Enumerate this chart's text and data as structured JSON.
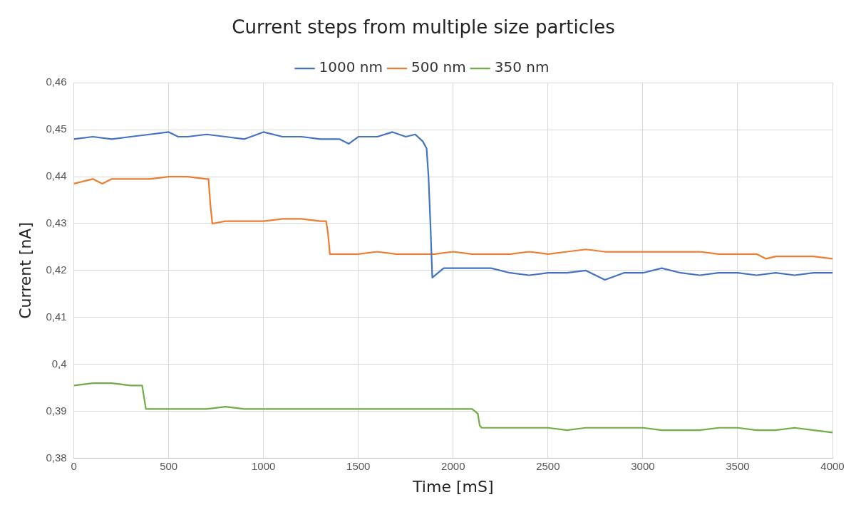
{
  "chart_data": {
    "type": "line",
    "title": "Current steps from multiple size particles",
    "xlabel": "Time [mS]",
    "ylabel": "Current [nA]",
    "xlim": [
      0,
      4000
    ],
    "xticks": [
      0,
      500,
      1000,
      1500,
      2000,
      2500,
      3000,
      3500,
      4000
    ],
    "ylim": [
      0.38,
      0.46
    ],
    "yticks": [
      {
        "value": 0.38,
        "label": "0,38"
      },
      {
        "value": 0.39,
        "label": "0,39"
      },
      {
        "value": 0.4,
        "label": "0,4"
      },
      {
        "value": 0.41,
        "label": "0,41"
      },
      {
        "value": 0.42,
        "label": "0,42"
      },
      {
        "value": 0.43,
        "label": "0,43"
      },
      {
        "value": 0.44,
        "label": "0,44"
      },
      {
        "value": 0.45,
        "label": "0,45"
      },
      {
        "value": 0.46,
        "label": "0,46"
      }
    ],
    "grid": true,
    "legend": "top",
    "marker": "none",
    "line_style": "solid",
    "series": [
      {
        "name": "1000 nm",
        "color": "#4472c4",
        "x": [
          0,
          100,
          200,
          300,
          400,
          500,
          550,
          600,
          700,
          800,
          900,
          1000,
          1100,
          1200,
          1300,
          1400,
          1450,
          1500,
          1600,
          1680,
          1750,
          1800,
          1840,
          1860,
          1870,
          1880,
          1890,
          1950,
          2000,
          2100,
          2200,
          2300,
          2400,
          2500,
          2600,
          2700,
          2800,
          2900,
          3000,
          3100,
          3200,
          3300,
          3400,
          3500,
          3600,
          3700,
          3800,
          3900,
          4000
        ],
        "values": [
          0.448,
          0.4485,
          0.448,
          0.4485,
          0.449,
          0.4495,
          0.4485,
          0.4485,
          0.449,
          0.4485,
          0.448,
          0.4495,
          0.4485,
          0.4485,
          0.448,
          0.448,
          0.447,
          0.4485,
          0.4485,
          0.4495,
          0.4485,
          0.449,
          0.4475,
          0.446,
          0.44,
          0.43,
          0.4185,
          0.4205,
          0.4205,
          0.4205,
          0.4205,
          0.4195,
          0.419,
          0.4195,
          0.4195,
          0.42,
          0.418,
          0.4195,
          0.4195,
          0.4205,
          0.4195,
          0.419,
          0.4195,
          0.4195,
          0.419,
          0.4195,
          0.419,
          0.4195,
          0.4195
        ]
      },
      {
        "name": "500 nm",
        "color": "#ed7d31",
        "x": [
          0,
          100,
          150,
          200,
          300,
          400,
          500,
          600,
          700,
          710,
          720,
          730,
          800,
          900,
          1000,
          1100,
          1200,
          1300,
          1330,
          1340,
          1350,
          1400,
          1500,
          1600,
          1700,
          1800,
          1900,
          2000,
          2100,
          2200,
          2300,
          2400,
          2500,
          2600,
          2700,
          2800,
          2900,
          3000,
          3100,
          3200,
          3300,
          3400,
          3500,
          3600,
          3650,
          3700,
          3800,
          3900,
          4000
        ],
        "values": [
          0.4385,
          0.4395,
          0.4385,
          0.4395,
          0.4395,
          0.4395,
          0.44,
          0.44,
          0.4395,
          0.4395,
          0.434,
          0.43,
          0.4305,
          0.4305,
          0.4305,
          0.431,
          0.431,
          0.4305,
          0.4305,
          0.428,
          0.4235,
          0.4235,
          0.4235,
          0.424,
          0.4235,
          0.4235,
          0.4235,
          0.424,
          0.4235,
          0.4235,
          0.4235,
          0.424,
          0.4235,
          0.424,
          0.4245,
          0.424,
          0.424,
          0.424,
          0.424,
          0.424,
          0.424,
          0.4235,
          0.4235,
          0.4235,
          0.4225,
          0.423,
          0.423,
          0.423,
          0.4225
        ]
      },
      {
        "name": "350 nm",
        "color": "#70ad47",
        "x": [
          0,
          100,
          200,
          300,
          360,
          370,
          380,
          400,
          500,
          600,
          700,
          800,
          900,
          1000,
          1100,
          1200,
          1300,
          1400,
          1500,
          1600,
          1700,
          1800,
          1900,
          2000,
          2100,
          2130,
          2140,
          2150,
          2200,
          2300,
          2400,
          2500,
          2600,
          2700,
          2800,
          2900,
          3000,
          3100,
          3200,
          3300,
          3400,
          3500,
          3600,
          3700,
          3800,
          3900,
          4000
        ],
        "values": [
          0.3955,
          0.396,
          0.396,
          0.3955,
          0.3955,
          0.393,
          0.3905,
          0.3905,
          0.3905,
          0.3905,
          0.3905,
          0.391,
          0.3905,
          0.3905,
          0.3905,
          0.3905,
          0.3905,
          0.3905,
          0.3905,
          0.3905,
          0.3905,
          0.3905,
          0.3905,
          0.3905,
          0.3905,
          0.3895,
          0.387,
          0.3865,
          0.3865,
          0.3865,
          0.3865,
          0.3865,
          0.386,
          0.3865,
          0.3865,
          0.3865,
          0.3865,
          0.386,
          0.386,
          0.386,
          0.3865,
          0.3865,
          0.386,
          0.386,
          0.3865,
          0.386,
          0.3855
        ]
      }
    ]
  }
}
